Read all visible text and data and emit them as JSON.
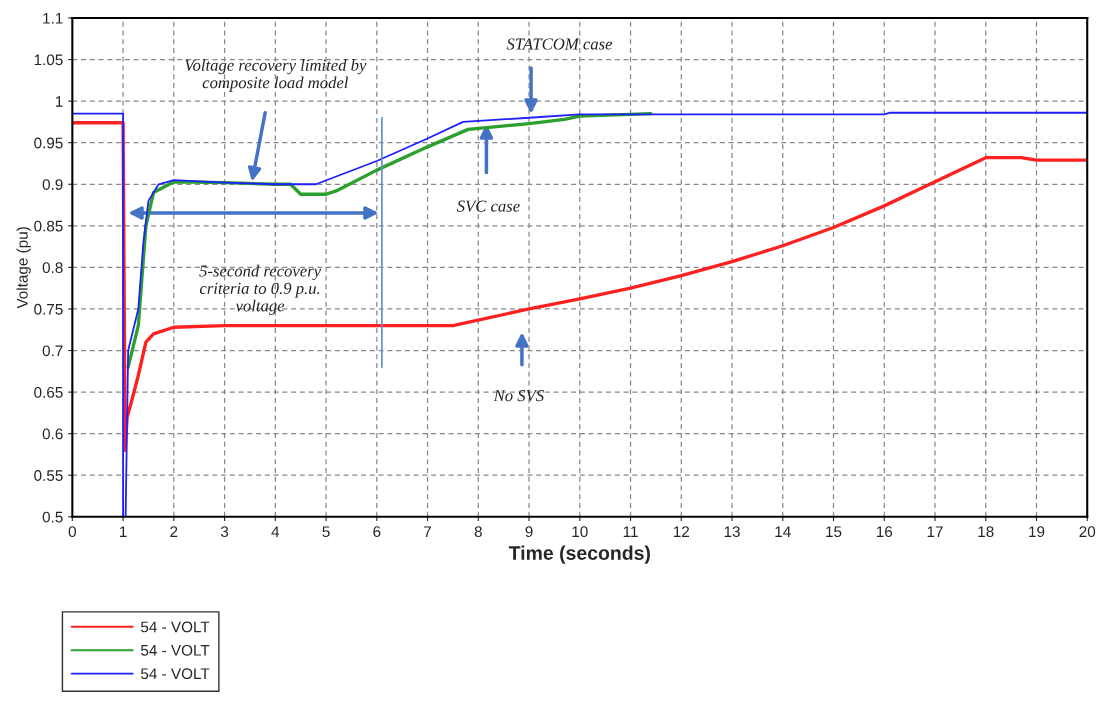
{
  "chart_data": {
    "type": "line",
    "xlabel": "Time (seconds)",
    "ylabel": "Voltage (pu)",
    "xlim": [
      0,
      20
    ],
    "xticks": [
      0,
      1,
      2,
      3,
      4,
      5,
      6,
      7,
      8,
      9,
      10,
      11,
      12,
      13,
      14,
      15,
      16,
      17,
      18,
      19,
      20
    ],
    "ylim": [
      0.5,
      1.1
    ],
    "yticks": [
      0.5,
      0.55,
      0.6,
      0.65,
      0.7,
      0.75,
      0.8,
      0.85,
      0.9,
      0.95,
      1,
      1.05,
      1.1
    ],
    "grid": true,
    "legend": "bottom",
    "line_style": "solid",
    "marker": "none",
    "series": [
      {
        "name": "54 - VOLT",
        "color": "#ff2020",
        "x": [
          0,
          1.0,
          1.04,
          1.08,
          1.15,
          1.3,
          1.45,
          1.6,
          2,
          3,
          5,
          6,
          7.5,
          9,
          10,
          11,
          12,
          13,
          14,
          15,
          16,
          17,
          18,
          18.7,
          19,
          20
        ],
        "values": [
          0.974,
          0.974,
          0.58,
          0.62,
          0.635,
          0.67,
          0.71,
          0.72,
          0.728,
          0.73,
          0.73,
          0.73,
          0.73,
          0.75,
          0.762,
          0.775,
          0.79,
          0.807,
          0.826,
          0.848,
          0.874,
          0.903,
          0.932,
          0.932,
          0.929,
          0.929
        ]
      },
      {
        "name": "54 - VOLT",
        "color": "#2ca02c",
        "x": [
          1.1,
          1.3,
          1.45,
          1.6,
          2,
          3,
          4,
          4.3,
          4.5,
          5,
          5.2,
          6,
          7,
          7.8,
          9,
          9.7,
          10,
          11.4
        ],
        "values": [
          0.68,
          0.73,
          0.85,
          0.89,
          0.903,
          0.902,
          0.9,
          0.9,
          0.888,
          0.888,
          0.892,
          0.917,
          0.945,
          0.966,
          0.973,
          0.978,
          0.982,
          0.985
        ]
      },
      {
        "name": "54 - VOLT",
        "color": "#2020ff",
        "x": [
          0,
          1.0,
          1.0,
          1.05,
          1.1,
          1.3,
          1.4,
          1.5,
          1.7,
          2,
          3,
          4,
          4.8,
          6,
          7,
          7.7,
          9,
          10,
          12,
          16,
          16.1,
          20
        ],
        "values": [
          0.985,
          0.985,
          0.5,
          0.5,
          0.7,
          0.75,
          0.83,
          0.88,
          0.9,
          0.905,
          0.902,
          0.9,
          0.9,
          0.928,
          0.955,
          0.975,
          0.98,
          0.984,
          0.984,
          0.984,
          0.986,
          0.986
        ]
      }
    ],
    "ref_lines": [
      {
        "axis": "x",
        "value": 6.1,
        "color": "#5b8fd6"
      }
    ],
    "annotations": [
      "Voltage recovery limited by\ncomposite load model",
      "STATCOM case",
      "SVC case",
      "5-second recovery\ncriteria to 0.9 p.u.\nvoltage",
      "No SVS"
    ]
  }
}
